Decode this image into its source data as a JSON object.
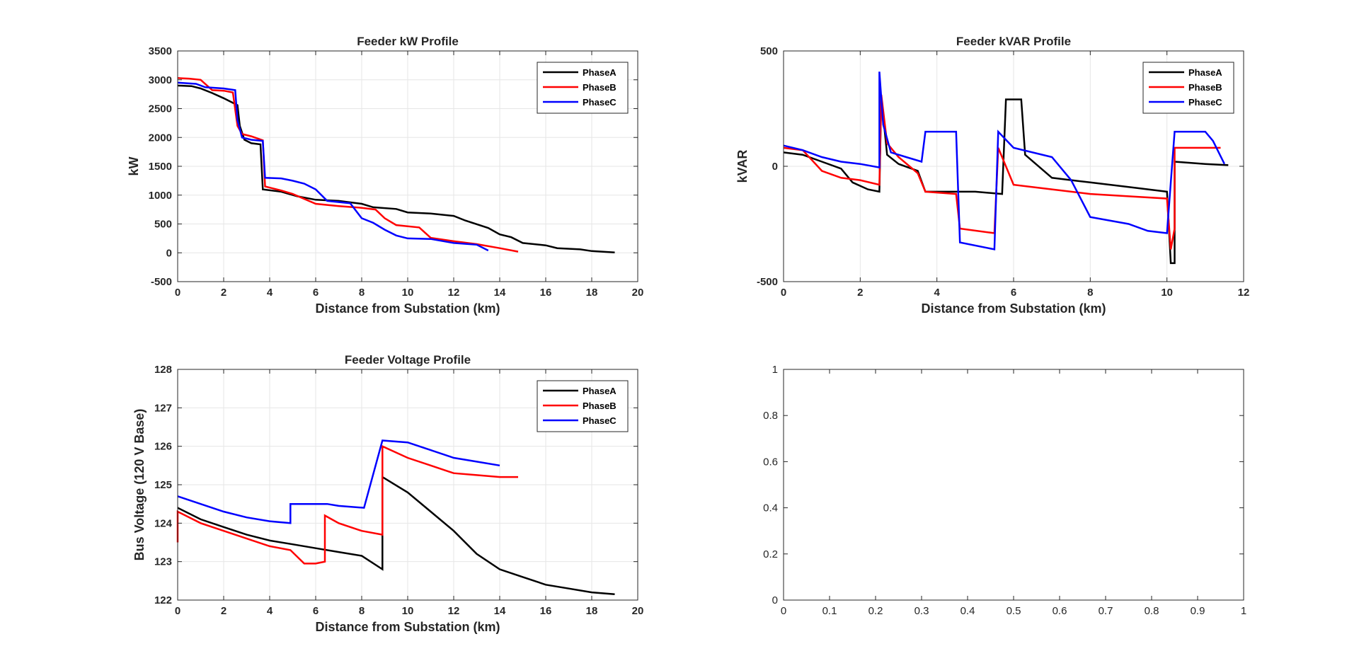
{
  "figure": {
    "background": "#ffffff",
    "colors": {
      "PhaseA": "#000000",
      "PhaseB": "#ff0000",
      "PhaseC": "#0000ff",
      "grid": "#e6e6e6",
      "axis": "#262626"
    }
  },
  "chart_data": [
    {
      "id": "kw",
      "type": "line",
      "title": "Feeder kW Profile",
      "xlabel": "Distance from Substation (km)",
      "ylabel": "kW",
      "xlim": [
        0,
        20
      ],
      "ylim": [
        -500,
        3500
      ],
      "xticks": [
        "0",
        "2",
        "4",
        "6",
        "8",
        "10",
        "12",
        "14",
        "16",
        "18",
        "20"
      ],
      "yticks": [
        "-500",
        "0",
        "500",
        "1000",
        "1500",
        "2000",
        "2500",
        "3000",
        "3500"
      ],
      "grid": true,
      "legend": {
        "position": "top-right",
        "entries": [
          "PhaseA",
          "PhaseB",
          "PhaseC"
        ]
      },
      "series": [
        {
          "name": "PhaseA",
          "color": "#000000",
          "points": [
            [
              0,
              2900
            ],
            [
              0.6,
              2890
            ],
            [
              1.0,
              2850
            ],
            [
              1.5,
              2770
            ],
            [
              2.0,
              2680
            ],
            [
              2.6,
              2560
            ],
            [
              2.7,
              2200
            ],
            [
              2.9,
              1960
            ],
            [
              3.2,
              1900
            ],
            [
              3.6,
              1880
            ],
            [
              3.7,
              1100
            ],
            [
              4.5,
              1060
            ],
            [
              5.2,
              980
            ],
            [
              6.0,
              920
            ],
            [
              7.0,
              900
            ],
            [
              8.0,
              850
            ],
            [
              8.5,
              790
            ],
            [
              9.5,
              760
            ],
            [
              10.0,
              700
            ],
            [
              11.0,
              680
            ],
            [
              12.0,
              640
            ],
            [
              12.5,
              560
            ],
            [
              13.5,
              430
            ],
            [
              14.0,
              320
            ],
            [
              14.5,
              270
            ],
            [
              15.0,
              170
            ],
            [
              16.0,
              130
            ],
            [
              16.5,
              80
            ],
            [
              17.5,
              60
            ],
            [
              18.0,
              30
            ],
            [
              19.0,
              5
            ]
          ]
        },
        {
          "name": "PhaseB",
          "color": "#ff0000",
          "points": [
            [
              0,
              3030
            ],
            [
              0.5,
              3020
            ],
            [
              1.0,
              3000
            ],
            [
              1.5,
              2820
            ],
            [
              2.0,
              2810
            ],
            [
              2.4,
              2780
            ],
            [
              2.6,
              2200
            ],
            [
              2.8,
              2060
            ],
            [
              3.2,
              2020
            ],
            [
              3.7,
              1950
            ],
            [
              3.8,
              1150
            ],
            [
              4.5,
              1080
            ],
            [
              5.0,
              1020
            ],
            [
              6.0,
              850
            ],
            [
              7.0,
              810
            ],
            [
              8.0,
              780
            ],
            [
              8.6,
              750
            ],
            [
              9.0,
              600
            ],
            [
              9.5,
              480
            ],
            [
              10.5,
              440
            ],
            [
              11.0,
              260
            ],
            [
              12.0,
              200
            ],
            [
              13.0,
              150
            ],
            [
              14.0,
              80
            ],
            [
              14.8,
              20
            ]
          ]
        },
        {
          "name": "PhaseC",
          "color": "#0000ff",
          "points": [
            [
              0,
              2950
            ],
            [
              0.8,
              2930
            ],
            [
              1.2,
              2870
            ],
            [
              2.0,
              2850
            ],
            [
              2.5,
              2820
            ],
            [
              2.6,
              2300
            ],
            [
              2.8,
              2000
            ],
            [
              3.2,
              1960
            ],
            [
              3.7,
              1940
            ],
            [
              3.8,
              1300
            ],
            [
              4.5,
              1290
            ],
            [
              5.0,
              1250
            ],
            [
              5.5,
              1200
            ],
            [
              6.0,
              1100
            ],
            [
              6.5,
              900
            ],
            [
              7.5,
              860
            ],
            [
              8.0,
              600
            ],
            [
              8.5,
              520
            ],
            [
              9.0,
              400
            ],
            [
              9.5,
              300
            ],
            [
              10.0,
              250
            ],
            [
              11.0,
              240
            ],
            [
              12.0,
              170
            ],
            [
              13.0,
              140
            ],
            [
              13.5,
              40
            ]
          ]
        }
      ]
    },
    {
      "id": "kvar",
      "type": "line",
      "title": "Feeder kVAR Profile",
      "xlabel": "Distance from Substation (km)",
      "ylabel": "kVAR",
      "xlim": [
        0,
        12
      ],
      "ylim": [
        -500,
        500
      ],
      "xticks": [
        "0",
        "2",
        "4",
        "6",
        "8",
        "10",
        "12"
      ],
      "yticks": [
        "-500",
        "0",
        "500"
      ],
      "grid": true,
      "legend": {
        "position": "top-right",
        "entries": [
          "PhaseA",
          "PhaseB",
          "PhaseC"
        ]
      },
      "series": [
        {
          "name": "PhaseA",
          "color": "#000000",
          "points": [
            [
              0,
              60
            ],
            [
              0.5,
              50
            ],
            [
              1.0,
              20
            ],
            [
              1.5,
              -10
            ],
            [
              1.8,
              -70
            ],
            [
              2.2,
              -100
            ],
            [
              2.5,
              -110
            ],
            [
              2.55,
              300
            ],
            [
              2.7,
              50
            ],
            [
              3.0,
              10
            ],
            [
              3.5,
              -20
            ],
            [
              3.7,
              -110
            ],
            [
              4.5,
              -110
            ],
            [
              5.0,
              -110
            ],
            [
              5.7,
              -120
            ],
            [
              5.8,
              290
            ],
            [
              6.2,
              290
            ],
            [
              6.3,
              50
            ],
            [
              7.0,
              -50
            ],
            [
              8.0,
              -70
            ],
            [
              9.0,
              -90
            ],
            [
              10.0,
              -110
            ],
            [
              10.1,
              -420
            ],
            [
              10.2,
              -420
            ],
            [
              10.2,
              20
            ],
            [
              11.0,
              10
            ],
            [
              11.6,
              5
            ]
          ]
        },
        {
          "name": "PhaseB",
          "color": "#ff0000",
          "points": [
            [
              0,
              80
            ],
            [
              0.5,
              70
            ],
            [
              1.0,
              -20
            ],
            [
              1.5,
              -50
            ],
            [
              2.0,
              -60
            ],
            [
              2.5,
              -80
            ],
            [
              2.55,
              310
            ],
            [
              2.7,
              100
            ],
            [
              3.0,
              40
            ],
            [
              3.5,
              -30
            ],
            [
              3.7,
              -110
            ],
            [
              4.5,
              -120
            ],
            [
              4.6,
              -270
            ],
            [
              5.5,
              -290
            ],
            [
              5.6,
              80
            ],
            [
              6.0,
              -80
            ],
            [
              7.0,
              -100
            ],
            [
              8.0,
              -120
            ],
            [
              9.0,
              -130
            ],
            [
              10.0,
              -140
            ],
            [
              10.1,
              -360
            ],
            [
              10.2,
              -270
            ],
            [
              10.2,
              80
            ],
            [
              11.0,
              80
            ],
            [
              11.4,
              80
            ]
          ]
        },
        {
          "name": "PhaseC",
          "color": "#0000ff",
          "points": [
            [
              0,
              90
            ],
            [
              0.5,
              70
            ],
            [
              1.0,
              40
            ],
            [
              1.5,
              20
            ],
            [
              2.0,
              10
            ],
            [
              2.5,
              -5
            ],
            [
              2.5,
              410
            ],
            [
              2.6,
              180
            ],
            [
              2.8,
              60
            ],
            [
              3.2,
              40
            ],
            [
              3.6,
              20
            ],
            [
              3.7,
              150
            ],
            [
              4.5,
              150
            ],
            [
              4.6,
              -330
            ],
            [
              5.5,
              -360
            ],
            [
              5.6,
              150
            ],
            [
              6.0,
              80
            ],
            [
              7.0,
              40
            ],
            [
              7.5,
              -60
            ],
            [
              8.0,
              -220
            ],
            [
              9.0,
              -250
            ],
            [
              9.5,
              -280
            ],
            [
              10.0,
              -290
            ],
            [
              10.2,
              150
            ],
            [
              11.0,
              150
            ],
            [
              11.2,
              110
            ],
            [
              11.5,
              10
            ]
          ]
        }
      ]
    },
    {
      "id": "voltage",
      "type": "line",
      "title": "Feeder Voltage Profile",
      "xlabel": "Distance from Substation (km)",
      "ylabel": "Bus Voltage (120 V Base)",
      "xlim": [
        0,
        20
      ],
      "ylim": [
        122,
        128
      ],
      "xticks": [
        "0",
        "2",
        "4",
        "6",
        "8",
        "10",
        "12",
        "14",
        "16",
        "18",
        "20"
      ],
      "yticks": [
        "122",
        "123",
        "124",
        "125",
        "126",
        "127",
        "128"
      ],
      "grid": true,
      "legend": {
        "position": "top-right",
        "entries": [
          "PhaseA",
          "PhaseB",
          "PhaseC"
        ]
      },
      "series": [
        {
          "name": "PhaseA",
          "color": "#000000",
          "points": [
            [
              0,
              124.4
            ],
            [
              1.0,
              124.1
            ],
            [
              2.0,
              123.9
            ],
            [
              3.0,
              123.7
            ],
            [
              4.0,
              123.55
            ],
            [
              5.0,
              123.45
            ],
            [
              6.0,
              123.35
            ],
            [
              7.0,
              123.25
            ],
            [
              8.0,
              123.15
            ],
            [
              8.9,
              122.8
            ],
            [
              8.9,
              125.2
            ],
            [
              10.0,
              124.8
            ],
            [
              11.0,
              124.3
            ],
            [
              12.0,
              123.8
            ],
            [
              13.0,
              123.2
            ],
            [
              14.0,
              122.8
            ],
            [
              15.0,
              122.6
            ],
            [
              16.0,
              122.4
            ],
            [
              17.0,
              122.3
            ],
            [
              18.0,
              122.2
            ],
            [
              19.0,
              122.15
            ]
          ]
        },
        {
          "name": "PhaseB",
          "color": "#ff0000",
          "points": [
            [
              0,
              123.5
            ],
            [
              0,
              124.3
            ],
            [
              1.0,
              124.0
            ],
            [
              2.0,
              123.8
            ],
            [
              3.0,
              123.6
            ],
            [
              4.0,
              123.4
            ],
            [
              4.9,
              123.3
            ],
            [
              5.5,
              122.95
            ],
            [
              6.0,
              122.95
            ],
            [
              6.4,
              123.0
            ],
            [
              6.4,
              124.2
            ],
            [
              7.0,
              124.0
            ],
            [
              8.0,
              123.8
            ],
            [
              8.9,
              123.7
            ],
            [
              8.9,
              126.0
            ],
            [
              10.0,
              125.7
            ],
            [
              11.0,
              125.5
            ],
            [
              12.0,
              125.3
            ],
            [
              13.0,
              125.25
            ],
            [
              14.0,
              125.2
            ],
            [
              14.8,
              125.2
            ]
          ]
        },
        {
          "name": "PhaseC",
          "color": "#0000ff",
          "points": [
            [
              0,
              124.7
            ],
            [
              1.0,
              124.5
            ],
            [
              2.0,
              124.3
            ],
            [
              3.0,
              124.15
            ],
            [
              4.0,
              124.05
            ],
            [
              4.9,
              124.0
            ],
            [
              4.9,
              124.5
            ],
            [
              6.0,
              124.5
            ],
            [
              6.5,
              124.5
            ],
            [
              7.0,
              124.45
            ],
            [
              8.1,
              124.4
            ],
            [
              8.9,
              126.15
            ],
            [
              10.0,
              126.1
            ],
            [
              11.0,
              125.9
            ],
            [
              12.0,
              125.7
            ],
            [
              13.0,
              125.6
            ],
            [
              14.0,
              125.5
            ]
          ]
        }
      ]
    },
    {
      "id": "empty",
      "type": "line",
      "title": "",
      "xlabel": "",
      "ylabel": "",
      "xlim": [
        0,
        1
      ],
      "ylim": [
        0,
        1
      ],
      "xticks": [
        "0",
        "0.1",
        "0.2",
        "0.3",
        "0.4",
        "0.5",
        "0.6",
        "0.7",
        "0.8",
        "0.9",
        "1"
      ],
      "yticks": [
        "0",
        "0.2",
        "0.4",
        "0.6",
        "0.8",
        "1"
      ],
      "grid": false,
      "series": []
    }
  ]
}
